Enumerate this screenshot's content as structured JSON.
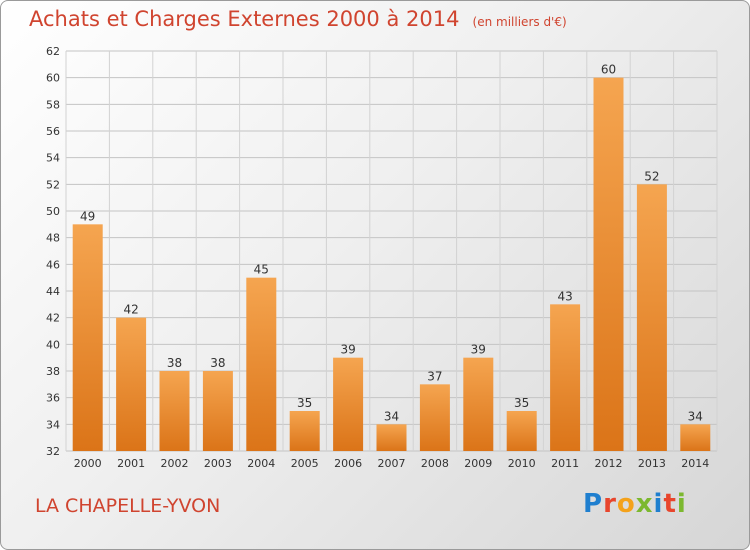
{
  "title": "Achats et Charges Externes 2000 à 2014",
  "subtitle": "(en milliers d'€)",
  "location": "LA CHAPELLE-YVON",
  "logo": {
    "text": "Proxiti",
    "colors": [
      "#1f7fcf",
      "#e8452c",
      "#f4a21b",
      "#7cb82f",
      "#1f7fcf",
      "#e8452c",
      "#7cb82f"
    ]
  },
  "chart_data": {
    "type": "bar",
    "categories": [
      "2000",
      "2001",
      "2002",
      "2003",
      "2004",
      "2005",
      "2006",
      "2007",
      "2008",
      "2009",
      "2010",
      "2011",
      "2012",
      "2013",
      "2014"
    ],
    "values": [
      49,
      42,
      38,
      38,
      45,
      35,
      39,
      34,
      37,
      39,
      35,
      43,
      60,
      52,
      34
    ],
    "ylim": [
      32,
      62
    ],
    "yticks": [
      32,
      34,
      36,
      38,
      40,
      42,
      44,
      46,
      48,
      50,
      52,
      54,
      56,
      58,
      60,
      62
    ],
    "grid": true,
    "bar_color": "#f0902f"
  }
}
